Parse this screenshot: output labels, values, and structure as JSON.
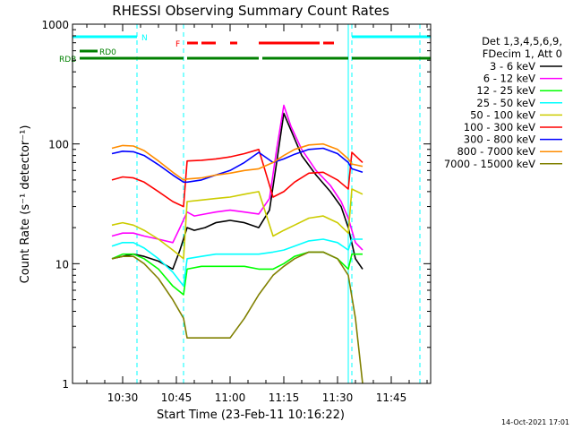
{
  "chart_data": {
    "type": "line",
    "title": "RHESSI Observing Summary Count Rates",
    "xlabel": "Start Time (23-Feb-11 10:16:22)",
    "ylabel": "Count Rate (s⁻¹ detector⁻¹)",
    "y_scale": "log",
    "ylim": [
      1,
      1000
    ],
    "xlim": [
      "10:16",
      "11:56"
    ],
    "x_ticks": [
      "10:30",
      "10:45",
      "11:00",
      "11:15",
      "11:30",
      "11:45"
    ],
    "y_ticks": [
      "1",
      "10",
      "100",
      "1000"
    ],
    "date_stamp": "14-Oct-2021 17:01",
    "legend": {
      "header": [
        "Det 1,3,4,5,6,9,",
        "FDecim 1, Att 0"
      ],
      "placement": "right"
    },
    "flags": {
      "night": {
        "label": "N",
        "color": "#00ffff",
        "intervals": [
          [
            "10:16",
            "10:34"
          ],
          [
            "11:34",
            "11:56"
          ]
        ]
      },
      "flare": {
        "label": "F",
        "color": "#ff0000",
        "intervals": [
          [
            "10:48",
            "10:51"
          ],
          [
            "10:52",
            "10:56"
          ],
          [
            "11:00",
            "11:02"
          ],
          [
            "11:08",
            "11:25"
          ],
          [
            "11:26",
            "11:29"
          ]
        ]
      },
      "rd0": {
        "label": "RD0",
        "color": "#008000",
        "intervals": [
          [
            "10:18",
            "10:23"
          ]
        ]
      },
      "rdb": {
        "label": "RDB",
        "color": "#008000",
        "intervals": [
          [
            "10:18",
            "10:47"
          ],
          [
            "10:48",
            "11:08"
          ],
          [
            "11:09",
            "11:33"
          ],
          [
            "11:34",
            "11:56"
          ]
        ]
      }
    },
    "markers": {
      "color": "#00ffff",
      "times": [
        "10:34",
        "10:47",
        "11:34",
        "11:53"
      ],
      "solid_times": [
        "10:16",
        "11:33"
      ]
    },
    "series": [
      {
        "name": "3 - 6 keV",
        "color": "#000000",
        "x": [
          "10:27",
          "10:30",
          "10:33",
          "10:36",
          "10:40",
          "10:44",
          "10:46",
          "10:48",
          "10:50",
          "10:53",
          "10:56",
          "11:00",
          "11:04",
          "11:08",
          "11:11",
          "11:13",
          "11:15",
          "11:17",
          "11:20",
          "11:24",
          "11:28",
          "11:31",
          "11:33",
          "11:35",
          "11:37"
        ],
        "y": [
          11,
          11.5,
          12,
          11.5,
          10.5,
          9,
          13,
          20,
          19,
          20,
          22,
          23,
          22,
          20,
          28,
          70,
          180,
          130,
          80,
          55,
          40,
          30,
          20,
          11,
          9
        ]
      },
      {
        "name": "6 - 12 keV",
        "color": "#ff00ff",
        "x": [
          "10:27",
          "10:30",
          "10:33",
          "10:36",
          "10:40",
          "10:44",
          "10:46",
          "10:48",
          "10:50",
          "10:53",
          "10:56",
          "11:00",
          "11:04",
          "11:08",
          "11:11",
          "11:13",
          "11:15",
          "11:17",
          "11:20",
          "11:24",
          "11:28",
          "11:31",
          "11:33",
          "11:35",
          "11:37"
        ],
        "y": [
          17,
          18,
          18,
          17,
          16,
          15,
          20,
          27,
          25,
          26,
          27,
          28,
          27,
          26,
          35,
          90,
          210,
          140,
          90,
          60,
          45,
          33,
          24,
          15,
          13
        ]
      },
      {
        "name": "12 - 25 keV",
        "color": "#00ff00",
        "x": [
          "10:27",
          "10:30",
          "10:33",
          "10:36",
          "10:40",
          "10:44",
          "10:47",
          "10:48",
          "10:52",
          "10:56",
          "11:00",
          "11:04",
          "11:08",
          "11:12",
          "11:15",
          "11:18",
          "11:22",
          "11:26",
          "11:30",
          "11:33",
          "11:34",
          "11:37"
        ],
        "y": [
          11,
          12,
          12,
          11,
          9,
          6.5,
          5.5,
          9,
          9.5,
          9.5,
          9.5,
          9.5,
          9,
          9,
          10,
          11.5,
          12.5,
          12.5,
          11,
          9,
          12,
          12
        ]
      },
      {
        "name": "25 - 50 keV",
        "color": "#00ffff",
        "x": [
          "10:27",
          "10:30",
          "10:33",
          "10:36",
          "10:40",
          "10:44",
          "10:47",
          "10:48",
          "10:52",
          "10:56",
          "11:00",
          "11:04",
          "11:08",
          "11:12",
          "11:15",
          "11:18",
          "11:22",
          "11:26",
          "11:30",
          "11:33",
          "11:34",
          "11:37"
        ],
        "y": [
          14,
          15,
          15,
          13.5,
          11,
          8.5,
          6.5,
          11,
          11.5,
          12,
          12,
          12,
          12,
          12.5,
          13,
          14,
          15.5,
          16,
          15,
          13,
          16,
          16
        ]
      },
      {
        "name": "50 - 100 keV",
        "color": "#cccc00",
        "x": [
          "10:27",
          "10:30",
          "10:33",
          "10:36",
          "10:40",
          "10:44",
          "10:47",
          "10:48",
          "10:52",
          "10:56",
          "11:00",
          "11:04",
          "11:08",
          "11:12",
          "11:15",
          "11:18",
          "11:22",
          "11:26",
          "11:30",
          "11:33",
          "11:34",
          "11:37"
        ],
        "y": [
          21,
          22,
          21,
          19,
          16,
          13,
          11,
          33,
          34,
          35,
          36,
          38,
          40,
          17,
          19,
          21,
          24,
          25,
          22,
          18,
          42,
          38
        ]
      },
      {
        "name": "100 - 300 keV",
        "color": "#ff0000",
        "x": [
          "10:27",
          "10:30",
          "10:33",
          "10:36",
          "10:40",
          "10:44",
          "10:47",
          "10:48",
          "10:52",
          "10:56",
          "11:00",
          "11:04",
          "11:08",
          "11:12",
          "11:15",
          "11:18",
          "11:22",
          "11:26",
          "11:30",
          "11:33",
          "11:34",
          "11:37"
        ],
        "y": [
          50,
          53,
          52,
          48,
          40,
          33,
          30,
          72,
          73,
          75,
          78,
          83,
          90,
          36,
          40,
          48,
          57,
          58,
          50,
          42,
          85,
          70
        ]
      },
      {
        "name": "300 - 800 keV",
        "color": "#0000ff",
        "x": [
          "10:27",
          "10:30",
          "10:33",
          "10:36",
          "10:40",
          "10:44",
          "10:47",
          "10:48",
          "10:52",
          "10:56",
          "11:00",
          "11:04",
          "11:08",
          "11:12",
          "11:15",
          "11:18",
          "11:22",
          "11:26",
          "11:30",
          "11:33",
          "11:34",
          "11:37"
        ],
        "y": [
          83,
          87,
          86,
          80,
          67,
          55,
          48,
          48,
          50,
          55,
          60,
          70,
          85,
          70,
          75,
          82,
          90,
          92,
          83,
          70,
          62,
          58
        ]
      },
      {
        "name": "800 - 7000 keV",
        "color": "#ff8c00",
        "x": [
          "10:27",
          "10:30",
          "10:33",
          "10:36",
          "10:40",
          "10:44",
          "10:47",
          "10:48",
          "10:52",
          "10:56",
          "11:00",
          "11:04",
          "11:08",
          "11:12",
          "11:15",
          "11:18",
          "11:22",
          "11:26",
          "11:30",
          "11:33",
          "11:34",
          "11:37"
        ],
        "y": [
          92,
          97,
          96,
          88,
          72,
          58,
          50,
          51,
          52,
          55,
          57,
          60,
          62,
          70,
          80,
          90,
          98,
          100,
          90,
          75,
          68,
          65
        ]
      },
      {
        "name": "7000 - 15000 keV",
        "color": "#808000",
        "x": [
          "10:27",
          "10:30",
          "10:33",
          "10:36",
          "10:40",
          "10:44",
          "10:47",
          "10:48",
          "10:52",
          "10:56",
          "11:00",
          "11:04",
          "11:08",
          "11:12",
          "11:15",
          "11:18",
          "11:22",
          "11:26",
          "11:30",
          "11:33",
          "11:35",
          "11:37"
        ],
        "y": [
          11,
          11.5,
          11.5,
          10,
          7.5,
          5,
          3.5,
          2.4,
          2.4,
          2.4,
          2.4,
          3.5,
          5.5,
          8,
          9.5,
          11,
          12.5,
          12.5,
          11,
          8,
          3.5,
          1
        ]
      }
    ]
  }
}
